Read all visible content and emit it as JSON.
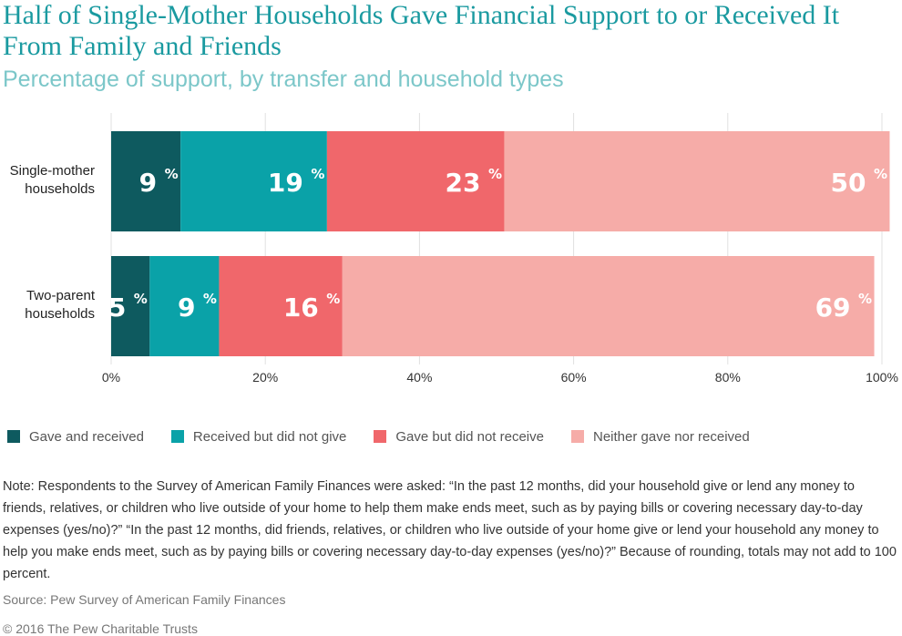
{
  "chart_data": {
    "type": "bar",
    "orientation": "horizontal",
    "stacked": true,
    "title": "Half of Single-Mother Households Gave Financial Support to or Received It From Family and Friends",
    "subtitle": "Percentage of support, by transfer and household types",
    "categories": [
      [
        "Single-mother",
        "households"
      ],
      [
        "Two-parent",
        "households"
      ]
    ],
    "series": [
      {
        "name": "Gave and received",
        "color": "#0e5a5f",
        "values": [
          9,
          5
        ],
        "labels": [
          "9",
          "5"
        ]
      },
      {
        "name": "Received but did not give",
        "color": "#0aa2a8",
        "values": [
          19,
          9
        ],
        "labels": [
          "19",
          "9"
        ]
      },
      {
        "name": "Gave but did not receive",
        "color": "#f0676b",
        "values": [
          23,
          16
        ],
        "labels": [
          "23",
          "16"
        ]
      },
      {
        "name": "Neither gave nor received",
        "color": "#f6aca8",
        "values": [
          50,
          69
        ],
        "labels": [
          "50",
          "69"
        ]
      }
    ],
    "label_suffix": "%",
    "xlim": [
      0,
      100
    ],
    "xticks": [
      "0%",
      "20%",
      "40%",
      "60%",
      "80%",
      "100%"
    ],
    "grid": true,
    "legend_position": "bottom-left"
  },
  "note": "Note: Respondents to the Survey of American Family Finances were asked: “In the past 12 months, did your household give or lend any money to friends, relatives, or children who live outside of your home to help them make ends meet, such as by paying bills or covering necessary day-to-day expenses (yes/no)?” “In the past 12 months, did friends, relatives, or children who live outside of your home give or lend your household any money to help you make ends meet, such as by paying bills or covering necessary day-to-day expenses (yes/no)?” Because of rounding, totals may not add to 100 percent.",
  "source": "Source: Pew Survey of American Family Finances",
  "copyright": "© 2016 The Pew Charitable Trusts"
}
